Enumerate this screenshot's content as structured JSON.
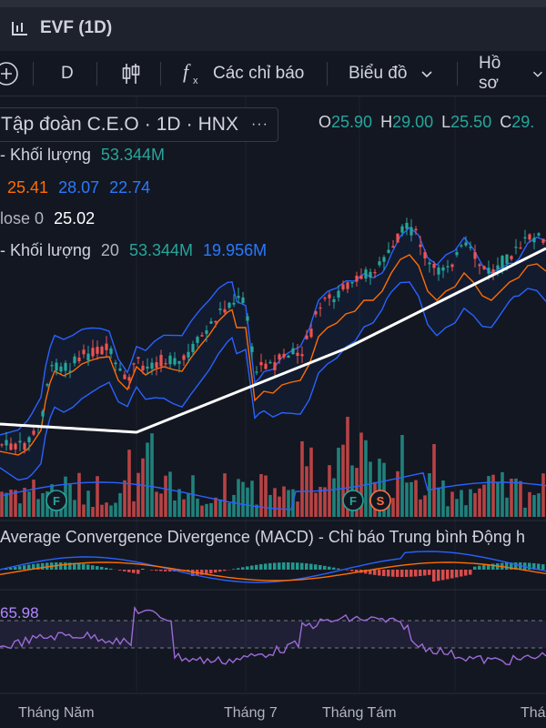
{
  "window": {
    "title": "EVF (1D)"
  },
  "toolbar": {
    "interval": "D",
    "indicators": "Các chỉ báo",
    "chart_type": "Biểu đồ",
    "profile": "Hồ sơ"
  },
  "symbol": {
    "name": "Tập đoàn C.E.O",
    "sep1": "·",
    "timeframe": "1D",
    "sep2": "·",
    "exchange": "HNX",
    "more": "···"
  },
  "ohlc": {
    "o_label": "O",
    "o": "25.90",
    "h_label": "H",
    "h": "29.00",
    "l_label": "L",
    "l": "25.50",
    "c_label": "C",
    "c": "29."
  },
  "legend": {
    "volume_label": "- Khối lượng",
    "volume_value": "53.344M",
    "bb_basis": "25.41",
    "bb_upper": "28.07",
    "bb_lower": "22.74",
    "ma_label": "lose 0",
    "ma_value": "25.02",
    "vol_ma_label": "- Khối lượng",
    "vol_ma_len": "20",
    "vol_ma_value1": "53.344M",
    "vol_ma_value2": "19.956M"
  },
  "macd": {
    "title": "Average Convergence Divergence (MACD) - Chỉ báo Trung bình Động h"
  },
  "rsi": {
    "value": "65.98"
  },
  "events": [
    {
      "label": "F",
      "type": "financial",
      "color": "#26a69a"
    },
    {
      "label": "F",
      "type": "financial",
      "color": "#26a69a"
    },
    {
      "label": "S",
      "type": "split",
      "color": "#ff7043"
    }
  ],
  "x_axis": [
    "Tháng Năm",
    "Tháng 7",
    "Tháng Tám",
    "Thá"
  ],
  "colors": {
    "up": "#26a69a",
    "down": "#ef5350",
    "bb": "#2962ff",
    "basis": "#ff6d00",
    "ma": "#ffffff",
    "rsi": "#9c6bd6",
    "macd": "#2962ff",
    "signal": "#ff6d00"
  },
  "chart_data": {
    "type": "candlestick",
    "series": [
      {
        "name": "Khối lượng",
        "values": []
      }
    ],
    "last": {
      "open": 25.9,
      "high": 29.0,
      "low": 25.5,
      "close": 29.0
    },
    "bollinger": {
      "basis": 25.41,
      "upper": 28.07,
      "lower": 22.74
    },
    "ma": 25.02,
    "volume": 53.344,
    "volume_ma": 19.956,
    "rsi": 65.98
  }
}
